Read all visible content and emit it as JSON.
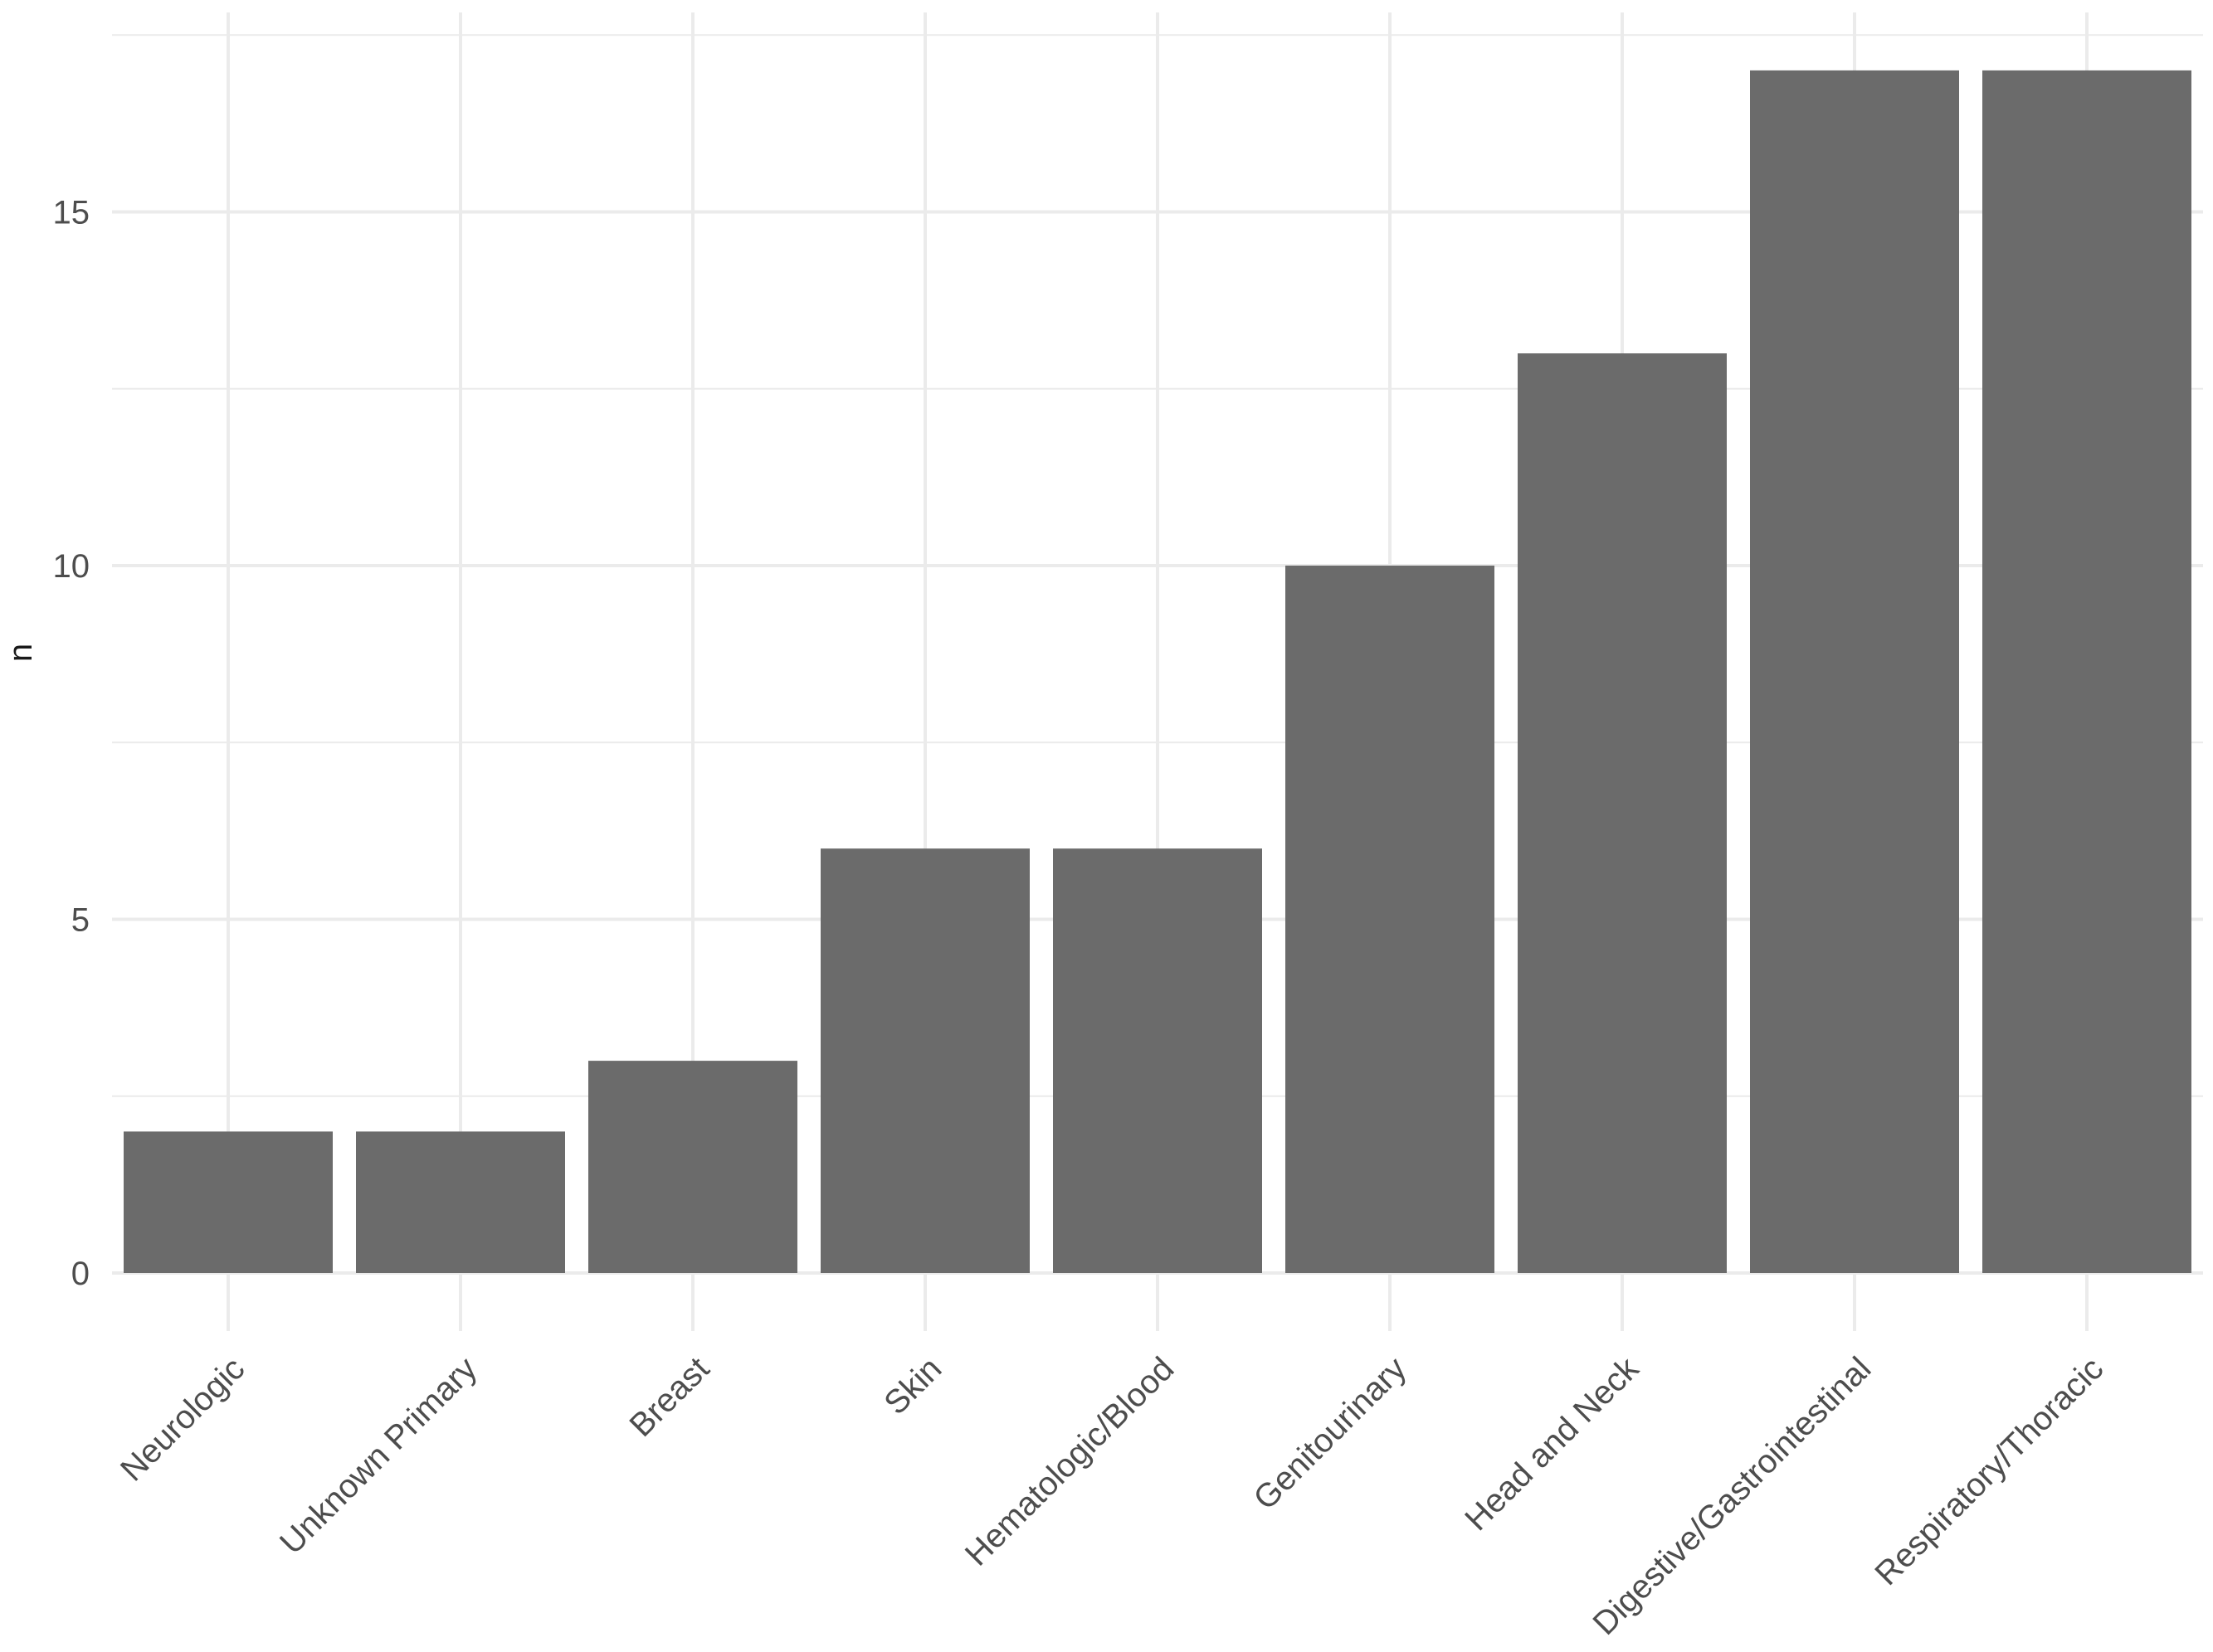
{
  "chart_data": {
    "type": "bar",
    "title": "",
    "xlabel": "",
    "ylabel": "n",
    "categories": [
      "Neurologic",
      "Unknown Primary",
      "Breast",
      "Skin",
      "Hematologic/Blood",
      "Genitourinary",
      "Head and Neck",
      "Digestive/Gastrointestinal",
      "Respiratory/Thoracic"
    ],
    "values": [
      2,
      2,
      3,
      6,
      6,
      10,
      13,
      17,
      17
    ],
    "ylim": [
      0,
      17.5
    ],
    "yticks": [
      0,
      5,
      10,
      15
    ],
    "grid": true,
    "bar_color": "#6b6b6b",
    "grid_color": "#ebebeb"
  }
}
